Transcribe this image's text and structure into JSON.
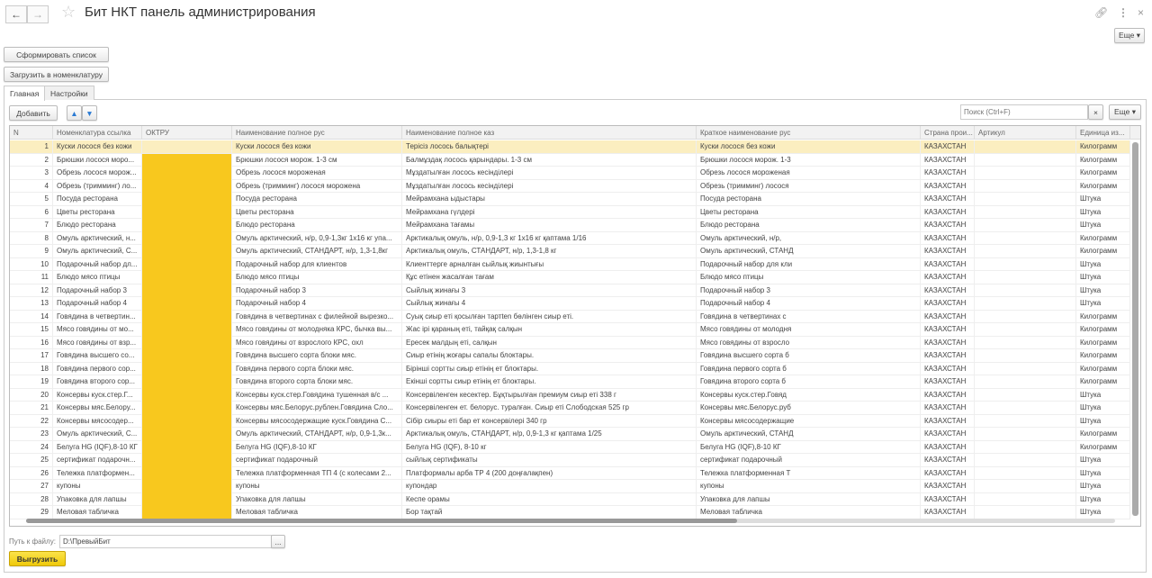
{
  "window": {
    "title": "Бит НКТ панель администрирования",
    "more_label": "Еще ▾",
    "back_icon": "←",
    "forward_icon": "→"
  },
  "actions": {
    "form_list": "Сформировать список",
    "load_nomenclature": "Загрузить в номенклатуру"
  },
  "tabs": [
    {
      "label": "Главная",
      "active": true
    },
    {
      "label": "Настройки",
      "active": false
    }
  ],
  "toolbar": {
    "add": "Добавить",
    "search_placeholder": "Поиск (Ctrl+F)",
    "clear": "×",
    "more": "Еще ▾"
  },
  "colors": {
    "oktru_highlight": "#f8c81e",
    "selected_row": "#fbeec0",
    "export_button": "#f5d40f"
  },
  "table": {
    "columns": [
      "N",
      "Номенклатура ссылка",
      "ОКТРУ",
      "Наименование полное рус",
      "Наименование полное каз",
      "Краткое наименование рус",
      "Страна прои...",
      "Артикул",
      "Единица из..."
    ],
    "rows": [
      [
        "1",
        "Куски лосося без кожи",
        "",
        "Куски лосося без кожи",
        "Терісіз лосось балықтері",
        "Куски лосося без кожи",
        "КАЗАХСТАН",
        "",
        "Килограмм"
      ],
      [
        "2",
        "Брюшки лосося моро...",
        "",
        "Брюшки лосося морож. 1-3 см",
        "Балмұздақ лосось қарындары. 1-3 см",
        "Брюшки лосося морож. 1-3",
        "КАЗАХСТАН",
        "",
        "Килограмм"
      ],
      [
        "3",
        "Обрезь лосося морож...",
        "",
        "Обрезь лосося мороженая",
        "Мұздатылған лосось кесінділері",
        "Обрезь лосося мороженая",
        "КАЗАХСТАН",
        "",
        "Килограмм"
      ],
      [
        "4",
        "Обрезь (тримминг) ло...",
        "",
        "Обрезь (тримминг) лосося морожена",
        "Мұздатылған лосось кесінділері",
        "Обрезь (тримминг) лосося",
        "КАЗАХСТАН",
        "",
        "Килограмм"
      ],
      [
        "5",
        "Посуда ресторана",
        "",
        "Посуда ресторана",
        "Мейрамхана ыдыстары",
        "Посуда ресторана",
        "КАЗАХСТАН",
        "",
        "Штука"
      ],
      [
        "6",
        "Цветы ресторана",
        "",
        "Цветы ресторана",
        "Мейрамхана гүлдері",
        "Цветы ресторана",
        "КАЗАХСТАН",
        "",
        "Штука"
      ],
      [
        "7",
        "Блюдо ресторана",
        "",
        "Блюдо ресторана",
        "Мейрамхана тағамы",
        "Блюдо ресторана",
        "КАЗАХСТАН",
        "",
        "Штука"
      ],
      [
        "8",
        "Омуль арктический, н...",
        "",
        "Омуль арктический, н/р, 0,9-1,3кг 1х16 кг упа...",
        "Арктикалық омуль, н/р, 0,9-1,3 кг 1х16 кг қаптама 1/16",
        "Омуль арктический, н/р,",
        "КАЗАХСТАН",
        "",
        "Килограмм"
      ],
      [
        "9",
        "Омуль арктический, С...",
        "",
        "Омуль арктический, СТАНДАРТ, н/р, 1,3-1,8кг",
        "Арктикалық омуль, СТАНДАРТ, н/р, 1,3-1,8 кг",
        "Омуль арктический, СТАНД",
        "КАЗАХСТАН",
        "",
        "Килограмм"
      ],
      [
        "10",
        "Подарочный набор дл...",
        "",
        "Подарочный набор для клиентов",
        "Клиенттерге арналған сыйлық жиынтығы",
        "Подарочный набор для кли",
        "КАЗАХСТАН",
        "",
        "Штука"
      ],
      [
        "11",
        "Блюдо мясо птицы",
        "",
        "Блюдо мясо птицы",
        "Құс етінен жасалған тағам",
        "Блюдо мясо птицы",
        "КАЗАХСТАН",
        "",
        "Штука"
      ],
      [
        "12",
        "Подарочный набор 3",
        "",
        "Подарочный набор 3",
        "Сыйлық жинағы 3",
        "Подарочный набор 3",
        "КАЗАХСТАН",
        "",
        "Штука"
      ],
      [
        "13",
        "Подарочный набор 4",
        "",
        "Подарочный набор 4",
        "Сыйлық жинағы 4",
        "Подарочный набор 4",
        "КАЗАХСТАН",
        "",
        "Штука"
      ],
      [
        "14",
        "Говядина в четвертин...",
        "",
        "Говядина в четвертинах с филейной вырезко...",
        "Суық сиыр еті қосылған тартten бөлінген сиыр еті.",
        "Говядина в четвертинах с",
        "КАЗАХСТАН",
        "",
        "Килограмм"
      ],
      [
        "15",
        "Мясо говядины от мо...",
        "",
        "Мясо говядины от молодняка КРС, бычка вы...",
        "Жас ірі қараның еті, тайқақ салқын",
        "Мясо говядины от молодня",
        "КАЗАХСТАН",
        "",
        "Килограмм"
      ],
      [
        "16",
        "Мясо говядины от взр...",
        "",
        "Мясо говядины от взрослого КРС, охл",
        "Ересек малдың еті, салқын",
        "Мясо говядины от взросло",
        "КАЗАХСТАН",
        "",
        "Килограмм"
      ],
      [
        "17",
        "Говядина высшего со...",
        "",
        "Говядина высшего сорта блоки мяс.",
        "Сиыр етінің жоғары сапалы блоктары.",
        "Говядина высшего сорта б",
        "КАЗАХСТАН",
        "",
        "Килограмм"
      ],
      [
        "18",
        "Говядина первого сор...",
        "",
        "Говядина первого сорта блоки мяс.",
        "Бірінші сортты сиыр етінің ет блоктары.",
        "Говядина первого сорта б",
        "КАЗАХСТАН",
        "",
        "Килограмм"
      ],
      [
        "19",
        "Говядина второго сор...",
        "",
        "Говядина второго сорта блоки мяс.",
        "Екінші сортты сиыр етінің ет блоктары.",
        "Говядина второго сорта б",
        "КАЗАХСТАН",
        "",
        "Килограмм"
      ],
      [
        "20",
        "Консервы куск.стер.Г...",
        "",
        "Консервы куск.стер.Говядина тушенная в/с ...",
        "Консервіленген кесектер. Бұқтырылған премиум сиыр еті 338 г",
        "Консервы куск.стер.Говяд",
        "КАЗАХСТАН",
        "",
        "Штука"
      ],
      [
        "21",
        "Консервы мяс.Белору...",
        "",
        "Консервы мяс.Белорус.рублен.Говядина Сло...",
        "Консервіленген ет. белорус. туралған. Сиыр еті Слободская 525 гр",
        "Консервы мяс.Белорус.руб",
        "КАЗАХСТАН",
        "",
        "Штука"
      ],
      [
        "22",
        "Консервы мясосодер...",
        "",
        "Консервы мясосодержащие куск.Говядина С...",
        "Сібір сиыры еті бар ет консервілері 340 гр",
        "Консервы мясосодержащие",
        "КАЗАХСТАН",
        "",
        "Штука"
      ],
      [
        "23",
        "Омуль арктический, С...",
        "",
        "Омуль арктический, СТАНДАРТ, н/р, 0,9-1,3к...",
        "Арктикалық омуль, СТАНДАРТ, н/р, 0,9-1,3 кг қаптама 1/25",
        "Омуль арктический, СТАНД",
        "КАЗАХСТАН",
        "",
        "Килограмм"
      ],
      [
        "24",
        "Белуга HG (IQF),8-10 КГ",
        "",
        "Белуга HG (IQF),8-10 КГ",
        "Белуга HG (IQF), 8-10 кг",
        "Белуга HG (IQF),8-10 КГ",
        "КАЗАХСТАН",
        "",
        "Килограмм"
      ],
      [
        "25",
        "сертификат подарочн...",
        "",
        "сертификат подарочный",
        "сыйлық сертификаты",
        "сертификат подарочный",
        "КАЗАХСТАН",
        "",
        "Штука"
      ],
      [
        "26",
        "Тележка платформен...",
        "",
        "Тележка платформенная  ТП 4 (с колесами 2...",
        "Платформалы арба ТР 4 (200 доңғалақпен)",
        "Тележка платформенная  Т",
        "КАЗАХСТАН",
        "",
        "Штука"
      ],
      [
        "27",
        "купоны",
        "",
        "купоны",
        "купондар",
        "купоны",
        "КАЗАХСТАН",
        "",
        "Штука"
      ],
      [
        "28",
        "Упаковка для лапшы",
        "",
        "Упаковка для лапшы",
        "Кеспе орамы",
        "Упаковка для лапшы",
        "КАЗАХСТАН",
        "",
        "Штука"
      ],
      [
        "29",
        "Меловая табличка",
        "",
        "Меловая табличка",
        "Бор тақтай",
        "Меловая табличка",
        "КАЗАХСТАН",
        "",
        "Штука"
      ]
    ]
  },
  "footer": {
    "path_label": "Путь к файлу:",
    "path_value": "D:\\ПревыйБит",
    "browse": "...",
    "export": "Выгрузить"
  }
}
